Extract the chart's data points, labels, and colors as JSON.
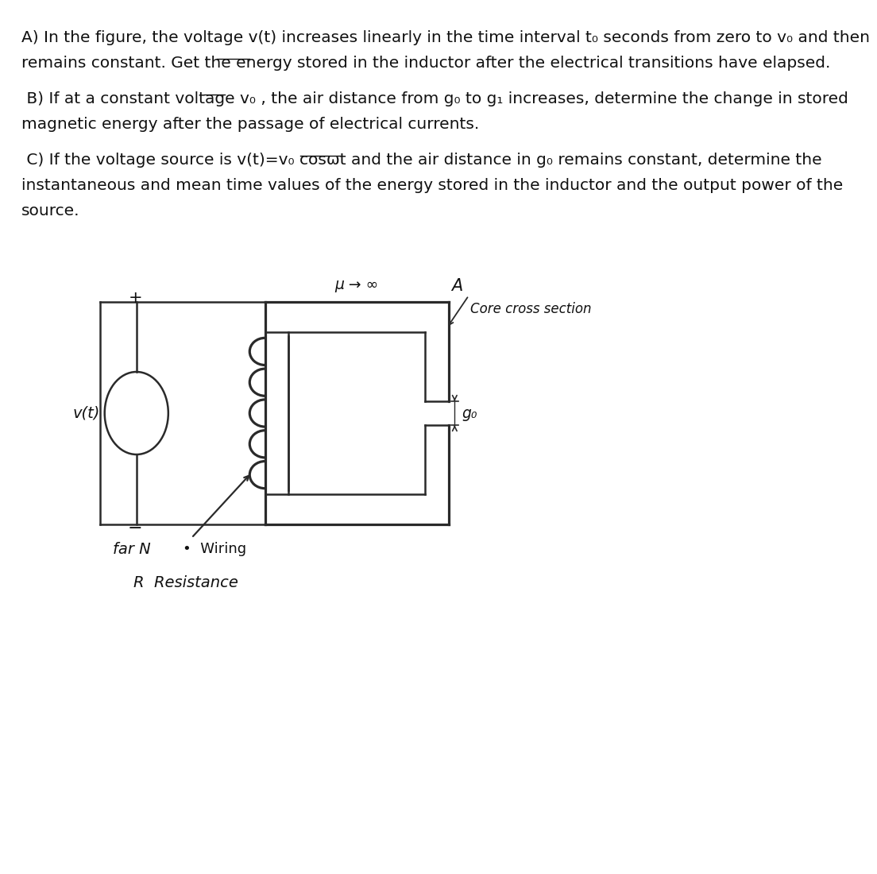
{
  "background_color": "#ffffff",
  "text_color": "#111111",
  "text_A_line1": "A) In the figure, the voltage v(t) increases linearly in the time interval t₀ seconds from zero to v₀ and then",
  "text_A_line2": "remains constant. Get the energy stored in the inductor after the electrical transitions have elapsed.",
  "text_B_line1": " B) If at a constant voltage v₀ , the air distance from g₀ to g₁ increases, determine the change in stored",
  "text_B_line2": "magnetic energy after the passage of electrical currents.",
  "text_C_line1": " C) If the voltage source is v(t)=v₀ cosωt and the air distance in g₀ remains constant, determine the",
  "text_C_line2": "instantaneous and mean time values of the energy stored in the inductor and the output power of the",
  "text_C_line3": "source.",
  "label_mu": "μ → ∞",
  "label_A": "A",
  "label_core": "Core cross section",
  "label_go": "g₀",
  "label_vt": "v(t)",
  "label_plus": "+",
  "label_minus": "−",
  "label_farN": "far N",
  "label_wiring": "•  Wiring",
  "label_R": "R  Resistance",
  "line_color": "#2a2a2a",
  "font_size_body": 14.5,
  "font_size_diagram": 13.5,
  "font_size_labels": 14
}
